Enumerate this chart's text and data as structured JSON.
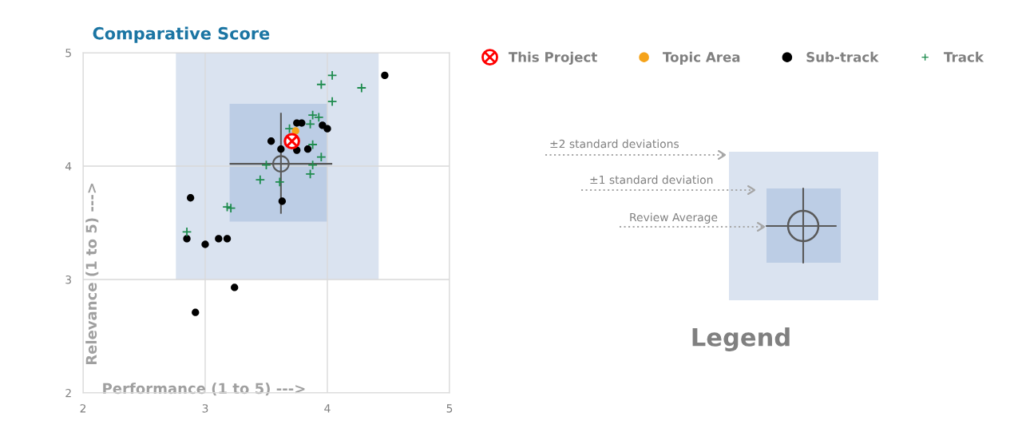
{
  "chart_data": {
    "type": "scatter",
    "title": "Comparative Score",
    "xlabel": "Performance (1 to 5) --->",
    "ylabel": "Relevance (1 to 5) --->",
    "xlim": [
      2,
      5
    ],
    "ylim": [
      2,
      5
    ],
    "xticks": [
      2,
      3,
      4,
      5
    ],
    "yticks": [
      2,
      3,
      4,
      5
    ],
    "grid": true,
    "legend": "right",
    "series": [
      {
        "type": "area",
        "color": "#dae3f0",
        "x": [
          2.76,
          4.42
        ],
        "values": [
          null,
          null
        ],
        "lower": [
          3.0,
          3.0
        ],
        "upper": [
          5.0,
          5.0
        ]
      },
      {
        "type": "area",
        "color": "#bccde5",
        "x": [
          3.2,
          4.0
        ],
        "values": [
          null,
          null
        ],
        "lower": [
          3.51,
          3.51
        ],
        "upper": [
          4.55,
          4.55
        ]
      },
      {
        "color": "#595959",
        "marker": "circle",
        "x": [
          3.62
        ],
        "values": [
          4.02
        ],
        "xerrors": [
          [
            3.2,
            4.04
          ]
        ],
        "errors": [
          [
            3.58,
            4.47
          ]
        ]
      },
      {
        "name": "Sub-track",
        "color": "#000000",
        "marker": "circle",
        "x": [
          4.47,
          3.75,
          3.79,
          3.96,
          4.0,
          3.54,
          3.62,
          3.75,
          3.84,
          3.63,
          2.88,
          2.85,
          3.0,
          3.11,
          3.18,
          3.24,
          2.92
        ],
        "values": [
          4.8,
          4.38,
          4.38,
          4.36,
          4.33,
          4.22,
          4.15,
          4.14,
          4.15,
          3.69,
          3.72,
          3.36,
          3.31,
          3.36,
          3.36,
          2.93,
          2.71
        ]
      },
      {
        "name": "Track",
        "color": "#1e8c4e",
        "marker": "cross",
        "x": [
          4.04,
          3.95,
          4.28,
          4.04,
          3.88,
          3.93,
          3.86,
          3.69,
          3.88,
          3.95,
          3.5,
          3.88,
          3.86,
          3.45,
          3.61,
          3.18,
          3.21,
          2.85
        ],
        "values": [
          4.8,
          4.72,
          4.69,
          4.57,
          4.45,
          4.43,
          4.37,
          4.33,
          4.19,
          4.08,
          4.01,
          4.01,
          3.93,
          3.88,
          3.86,
          3.64,
          3.63,
          3.42
        ]
      },
      {
        "name": "Topic Area",
        "color": "#f5a31a",
        "marker": "circle",
        "x": [
          3.74
        ],
        "values": [
          4.31
        ]
      },
      {
        "name": "This Project",
        "color": "#ff0000",
        "x": [
          3.71
        ],
        "values": [
          4.22
        ]
      }
    ],
    "annotations": [
      "±2 standard deviations",
      "±1 standard deviation",
      "Review Average",
      "Legend"
    ]
  }
}
